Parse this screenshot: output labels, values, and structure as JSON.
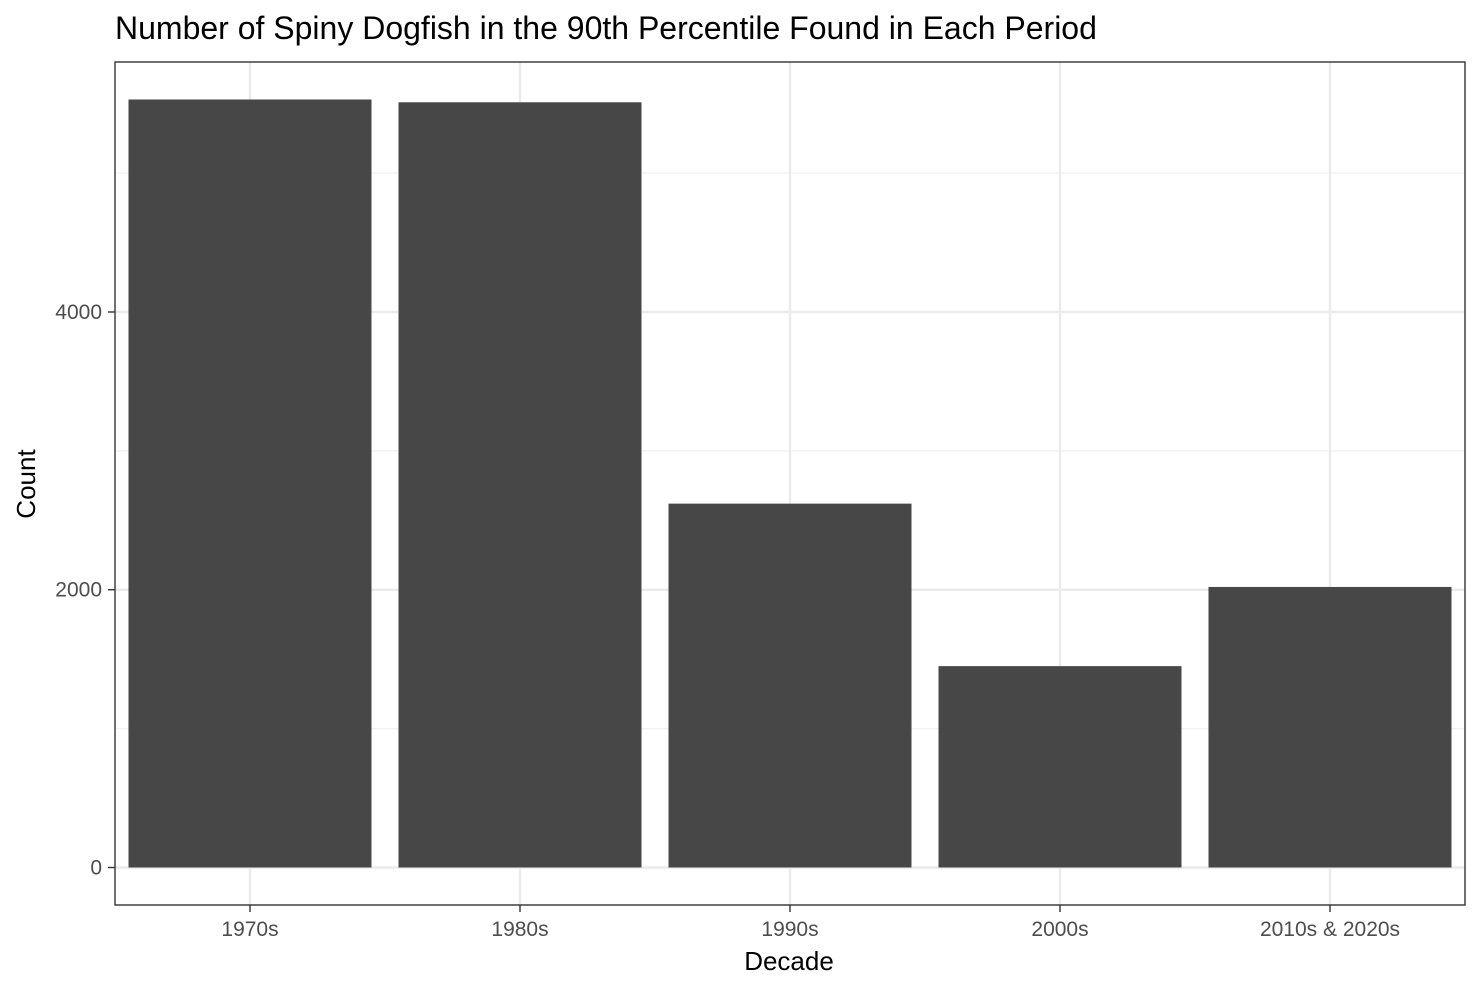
{
  "chart_data": {
    "type": "bar",
    "title": "Number of Spiny Dogfish in the 90th Percentile Found in Each Period",
    "xlabel": "Decade",
    "ylabel": "Count",
    "categories": [
      "1970s",
      "1980s",
      "1990s",
      "2000s",
      "2010s & 2020s"
    ],
    "values": [
      5530,
      5510,
      2620,
      1450,
      2020
    ],
    "ylim": [
      -270,
      5800
    ],
    "yticks": [
      0,
      2000,
      4000
    ],
    "ytick_labels": [
      "0",
      "2000",
      "4000"
    ],
    "grid": true,
    "theme": "bw",
    "colors": {
      "bar": "#474747",
      "grid_major": "#ebebeb",
      "grid_minor": "#f2f2f2",
      "panel_border": "#333333",
      "background": "#ffffff"
    }
  }
}
